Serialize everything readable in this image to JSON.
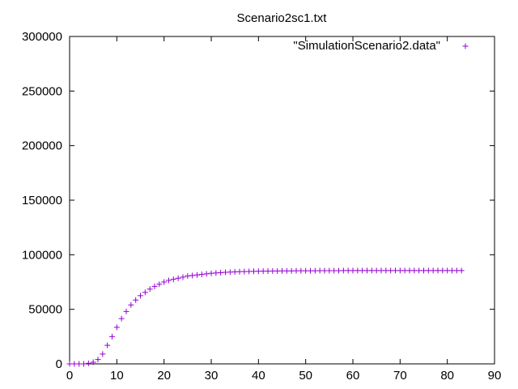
{
  "chart_data": {
    "type": "scatter",
    "title": "Scenario2sc1.txt",
    "xlabel": "",
    "ylabel": "",
    "xlim": [
      0,
      90
    ],
    "ylim": [
      0,
      300000
    ],
    "x_ticks": [
      0,
      10,
      20,
      30,
      40,
      50,
      60,
      70,
      80,
      90
    ],
    "y_ticks": [
      0,
      50000,
      100000,
      150000,
      200000,
      250000,
      300000
    ],
    "grid": false,
    "legend_position": "top-right",
    "series": [
      {
        "name": "\"SimulationScenario2.data\"",
        "color": "#9400d3",
        "marker": "plus",
        "x": [
          0,
          1,
          2,
          3,
          4,
          5,
          6,
          7,
          8,
          9,
          10,
          11,
          12,
          13,
          14,
          15,
          16,
          17,
          18,
          19,
          20,
          21,
          22,
          23,
          24,
          25,
          26,
          27,
          28,
          29,
          30,
          31,
          32,
          33,
          34,
          35,
          36,
          37,
          38,
          39,
          40,
          41,
          42,
          43,
          44,
          45,
          46,
          47,
          48,
          49,
          50,
          51,
          52,
          53,
          54,
          55,
          56,
          57,
          58,
          59,
          60,
          61,
          62,
          63,
          64,
          65,
          66,
          67,
          68,
          69,
          70,
          71,
          72,
          73,
          74,
          75,
          76,
          77,
          78,
          79,
          80,
          81,
          82,
          83
        ],
        "y": [
          0,
          0,
          0,
          0,
          500,
          1500,
          4000,
          9000,
          17000,
          25000,
          33500,
          41500,
          48000,
          54000,
          58500,
          62500,
          65500,
          68500,
          71000,
          73000,
          75000,
          76500,
          77500,
          78500,
          79500,
          80500,
          81000,
          81500,
          82000,
          82500,
          83000,
          83300,
          83600,
          83900,
          84100,
          84300,
          84500,
          84600,
          84700,
          84800,
          84900,
          85000,
          85000,
          85100,
          85100,
          85200,
          85200,
          85200,
          85300,
          85300,
          85300,
          85300,
          85300,
          85400,
          85400,
          85400,
          85400,
          85400,
          85500,
          85500,
          85500,
          85500,
          85500,
          85500,
          85500,
          85500,
          85500,
          85500,
          85500,
          85500,
          85500,
          85500,
          85500,
          85500,
          85500,
          85500,
          85500,
          85500,
          85500,
          85500,
          85500,
          85500,
          85500,
          85500
        ]
      }
    ]
  }
}
